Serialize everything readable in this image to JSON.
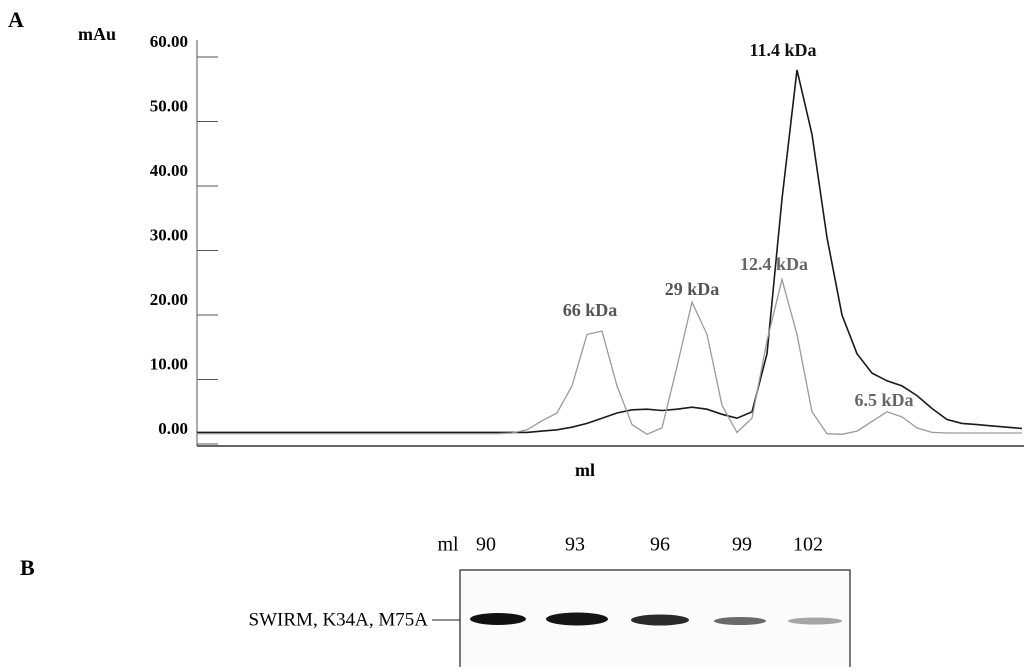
{
  "panel_labels": [
    "A",
    "B"
  ],
  "chart_data": {
    "type": "line",
    "y_label": "mAu",
    "x_label": "ml",
    "categories": [
      null,
      null,
      null,
      null,
      null,
      null,
      null,
      null,
      null,
      null,
      null,
      null,
      null,
      null,
      null,
      null,
      null,
      null,
      null,
      null,
      null,
      null,
      null,
      null,
      null,
      null,
      null,
      null,
      null,
      null,
      null,
      null,
      null,
      null,
      null,
      null,
      null,
      null,
      null,
      null,
      null,
      null,
      null,
      null,
      null,
      null,
      null,
      null,
      null,
      null,
      null,
      null,
      null,
      null,
      null,
      null
    ],
    "series": [
      {
        "color": "#1a1a1a",
        "values": [
          1.8,
          1.8,
          1.8,
          1.8,
          1.8,
          1.8,
          1.8,
          1.8,
          1.8,
          1.8,
          1.8,
          1.8,
          1.8,
          1.8,
          1.8,
          1.8,
          1.8,
          1.8,
          1.8,
          1.8,
          1.8,
          1.8,
          1.8,
          2,
          2.2,
          2.6,
          3.2,
          4,
          4.8,
          5.3,
          5.4,
          5.2,
          5.4,
          5.7,
          5.4,
          4.6,
          4,
          5,
          14,
          38,
          58,
          48,
          32,
          20,
          14,
          11,
          9.8,
          9,
          7.5,
          5.5,
          3.8,
          3.2,
          3,
          2.8,
          2.6,
          2.4
        ]
      },
      {
        "color": "#9a9a9a",
        "values": [
          1.6,
          1.6,
          1.6,
          1.6,
          1.6,
          1.6,
          1.6,
          1.6,
          1.6,
          1.6,
          1.6,
          1.6,
          1.6,
          1.6,
          1.6,
          1.6,
          1.6,
          1.6,
          1.6,
          1.6,
          1.6,
          1.7,
          2.2,
          3.6,
          4.8,
          9,
          17,
          17.5,
          9,
          3,
          1.5,
          2.5,
          12,
          22,
          17,
          6,
          1.8,
          4,
          16,
          25.5,
          17,
          5,
          1.6,
          1.5,
          2,
          3.5,
          5,
          4.2,
          2.5,
          1.8,
          1.7,
          1.7,
          1.7,
          1.7,
          1.7,
          1.7
        ]
      }
    ],
    "annotations": [
      "66 kDa",
      "29 kDa",
      "12.4 kDa",
      "11.4 kDa",
      "6.5 kDa"
    ],
    "ylim": [
      0,
      60
    ],
    "yticks": [
      {
        "value": 0,
        "label": "0.00"
      },
      {
        "value": 10,
        "label": "10.00"
      },
      {
        "value": 20,
        "label": "20.00"
      },
      {
        "value": 30,
        "label": "30.00"
      },
      {
        "value": 40,
        "label": "40.00"
      },
      {
        "value": 50,
        "label": "50.00"
      },
      {
        "value": 60,
        "label": "60.00"
      }
    ]
  },
  "gel": {
    "unit": "ml",
    "lanes": [
      "90",
      "93",
      "96",
      "99",
      "102"
    ],
    "row_label": "SWIRM, K34A, M75A"
  }
}
